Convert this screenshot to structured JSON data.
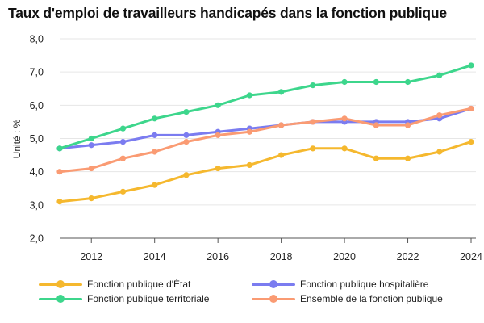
{
  "title": "Taux d'emploi de travailleurs handicapés dans la fonction publique",
  "chart_data": {
    "type": "line",
    "title": "Taux d'emploi de travailleurs handicapés dans la fonction publique",
    "xlabel": "",
    "ylabel": "Unité : %",
    "x": [
      2011,
      2012,
      2013,
      2014,
      2015,
      2016,
      2017,
      2018,
      2019,
      2020,
      2021,
      2022,
      2023,
      2024
    ],
    "xticks": [
      "2012",
      "2014",
      "2016",
      "2018",
      "2020",
      "2022",
      "2024"
    ],
    "xtick_values": [
      2012,
      2014,
      2016,
      2018,
      2020,
      2022,
      2024
    ],
    "yticks": [
      "2,0",
      "3,0",
      "4,0",
      "5,0",
      "6,0",
      "7,0",
      "8,0"
    ],
    "ytick_values": [
      2,
      3,
      4,
      5,
      6,
      7,
      8
    ],
    "ylim": [
      2,
      8
    ],
    "xlim": [
      2011,
      2024
    ],
    "grid": "horizontal",
    "legend_position": "bottom",
    "series": [
      {
        "name": "Fonction publique d'État",
        "color": "#f5b82e",
        "values": [
          3.1,
          3.2,
          3.4,
          3.6,
          3.9,
          4.1,
          4.2,
          4.5,
          4.7,
          4.7,
          4.4,
          4.4,
          4.6,
          4.9
        ]
      },
      {
        "name": "Fonction publique hospitalière",
        "color": "#7b7cf0",
        "values": [
          4.7,
          4.8,
          4.9,
          5.1,
          5.1,
          5.2,
          5.3,
          5.4,
          5.5,
          5.5,
          5.5,
          5.5,
          5.6,
          5.9
        ]
      },
      {
        "name": "Fonction publique territoriale",
        "color": "#3dd68c",
        "values": [
          4.7,
          5.0,
          5.3,
          5.6,
          5.8,
          6.0,
          6.3,
          6.4,
          6.6,
          6.7,
          6.7,
          6.7,
          6.9,
          7.2
        ]
      },
      {
        "name": "Ensemble de la fonction publique",
        "color": "#fa9b73",
        "values": [
          4.0,
          4.1,
          4.4,
          4.6,
          4.9,
          5.1,
          5.2,
          5.4,
          5.5,
          5.6,
          5.4,
          5.4,
          5.7,
          5.9
        ]
      }
    ]
  }
}
